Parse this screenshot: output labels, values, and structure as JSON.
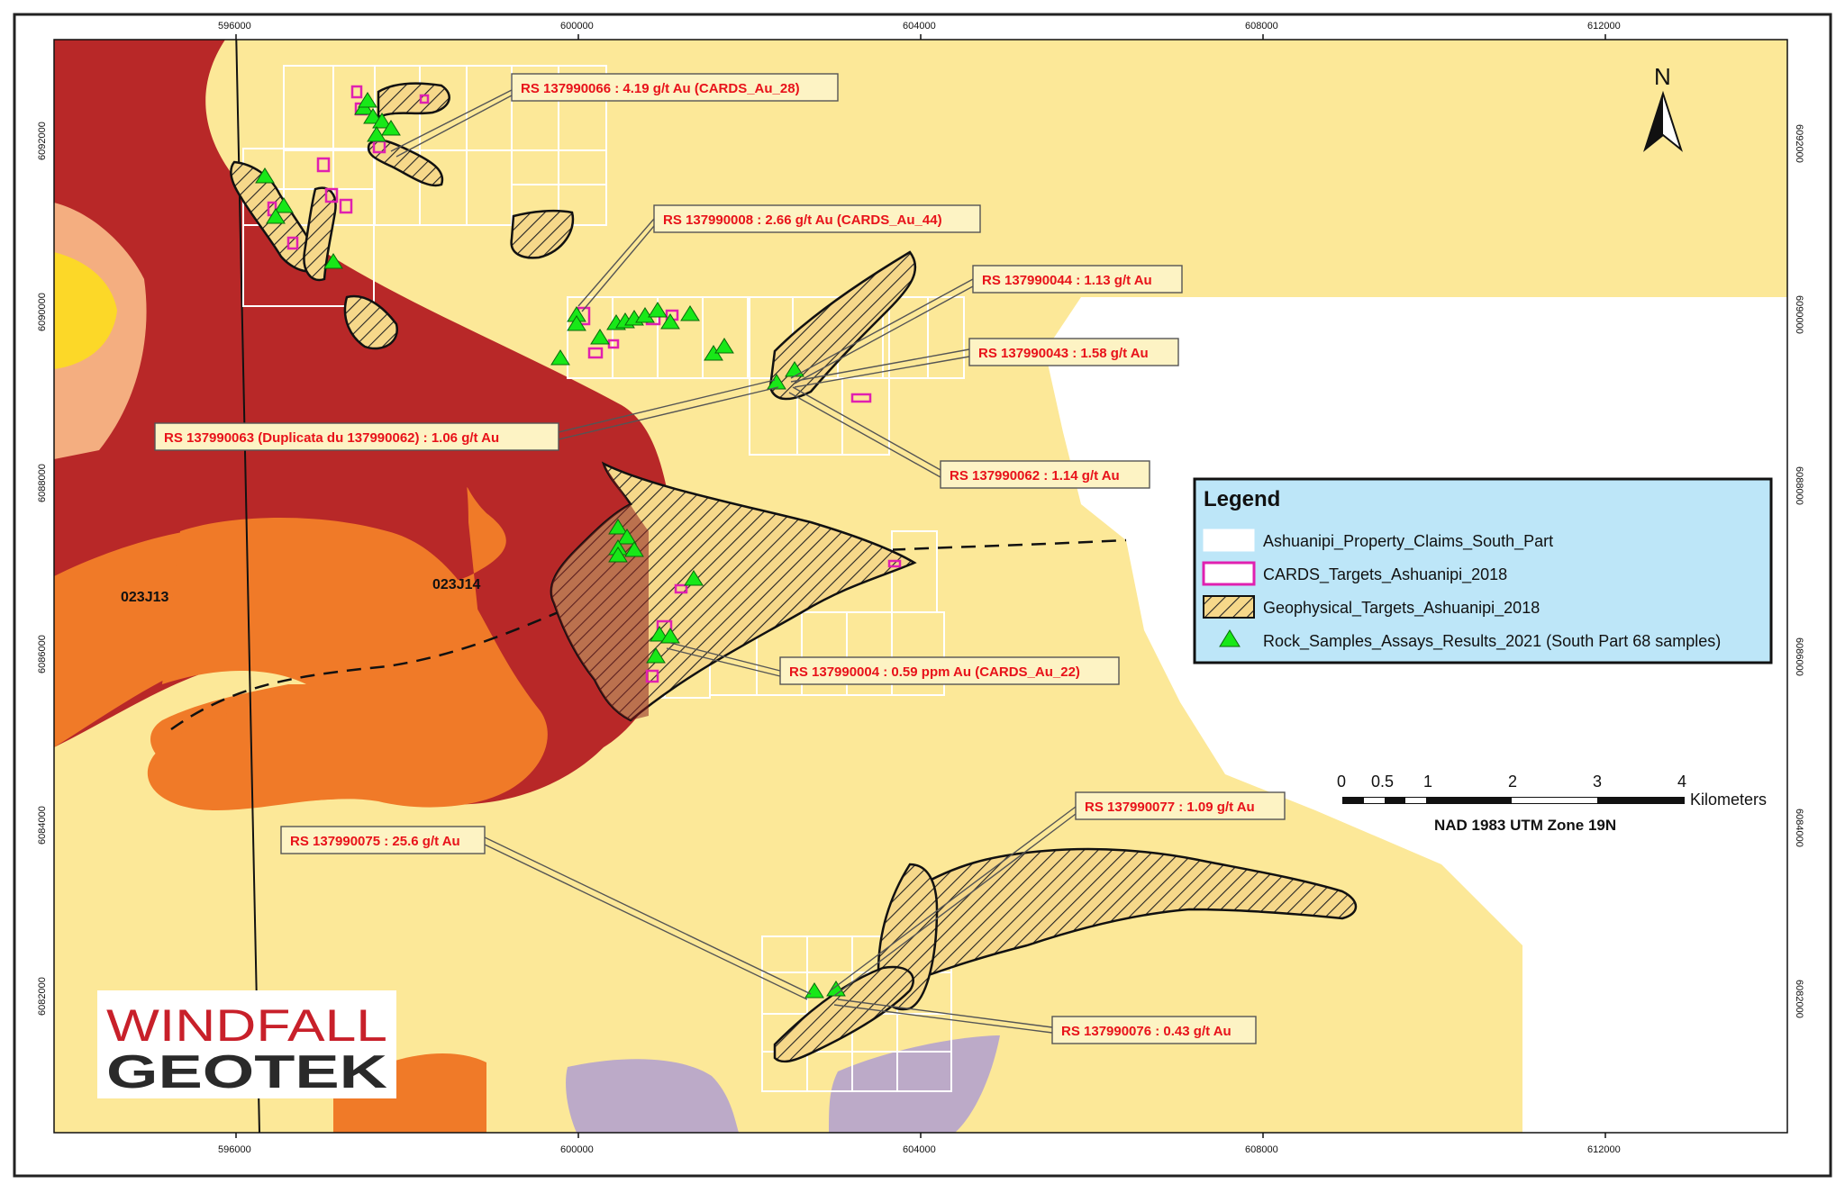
{
  "map": {
    "x_ticks": [
      "596000",
      "600000",
      "604000",
      "608000",
      "612000"
    ],
    "y_ticks": [
      "6092000",
      "6090000",
      "6088000",
      "6086000",
      "6084000",
      "6082000"
    ],
    "north": "N",
    "zones": [
      "023J13",
      "023J14"
    ],
    "colors": {
      "background_yellow": "#fce898",
      "dark_red": "#b82828",
      "orange": "#f07a28",
      "salmon": "#f4ae80",
      "bright_yellow": "#fcd828",
      "lavender": "#bcaac8",
      "sample_green": "#18e818",
      "cards_magenta": "#e020b0",
      "label_red": "#e8121a",
      "legend_blue": "#bde6f8"
    }
  },
  "labels": [
    {
      "text": "RS 137990066 : 4.19 g/t Au (CARDS_Au_28)"
    },
    {
      "text": "RS 137990008 : 2.66 g/t Au (CARDS_Au_44)"
    },
    {
      "text": "RS 137990044 : 1.13 g/t Au"
    },
    {
      "text": "RS 137990043 : 1.58 g/t Au"
    },
    {
      "text": "RS 137990063 (Duplicata du 137990062) : 1.06 g/t Au"
    },
    {
      "text": "RS 137990062 : 1.14 g/t Au"
    },
    {
      "text": "RS 137990004 : 0.59 ppm Au (CARDS_Au_22)"
    },
    {
      "text": "RS 137990077 : 1.09 g/t Au"
    },
    {
      "text": "RS 137990075 : 25.6 g/t Au"
    },
    {
      "text": "RS 137990076 : 0.43 g/t Au"
    }
  ],
  "legend": {
    "title": "Legend",
    "items": [
      {
        "symbol": "claims-swatch",
        "label": "Ashuanipi_Property_Claims_South_Part"
      },
      {
        "symbol": "cards-swatch",
        "label": "CARDS_Targets_Ashuanipi_2018"
      },
      {
        "symbol": "hatch-swatch",
        "label": "Geophysical_Targets_Ashuanipi_2018"
      },
      {
        "symbol": "triangle-icon",
        "label": "Rock_Samples_Assays_Results_2021 (South Part 68 samples)"
      }
    ]
  },
  "scale_bar": {
    "ticks": [
      "0",
      "0.5",
      "1",
      "2",
      "3",
      "4"
    ],
    "unit": "Kilometers",
    "projection": "NAD 1983 UTM Zone 19N"
  },
  "logo": {
    "line1": "WINDFALL",
    "line2": "GEOTEK"
  }
}
